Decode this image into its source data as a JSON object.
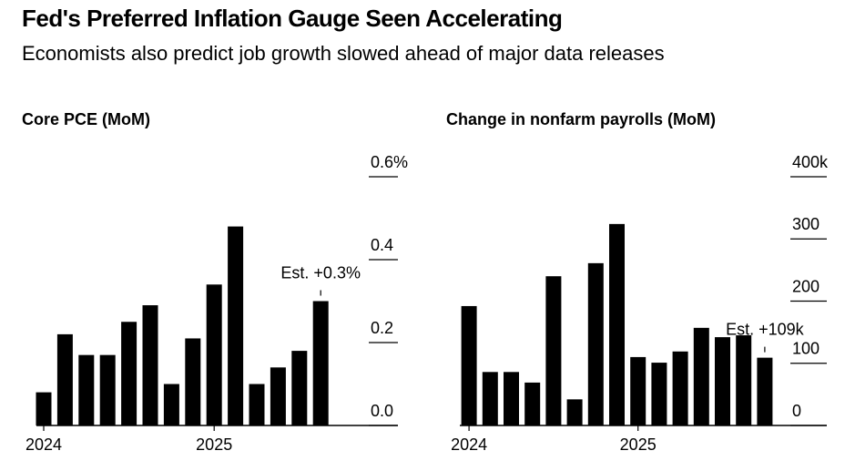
{
  "title": "Fed's Preferred Inflation Gauge Seen Accelerating",
  "subtitle": "Economists also predict job growth slowed ahead of major data releases",
  "chart_data": [
    {
      "type": "bar",
      "title": "Core PCE (MoM)",
      "categories": [
        "2024",
        null,
        null,
        null,
        null,
        null,
        null,
        null,
        "2025",
        null,
        null,
        null,
        null,
        null
      ],
      "values": [
        0.08,
        0.22,
        0.17,
        0.17,
        0.25,
        0.29,
        0.1,
        0.21,
        0.34,
        0.48,
        0.1,
        0.14,
        0.18,
        0.3
      ],
      "color": "#000000",
      "ylim": [
        0,
        0.6
      ],
      "yticks": [
        {
          "value": 0,
          "label": "0.0"
        },
        0.2,
        0.4,
        {
          "value": 0.6,
          "label": "0.6%"
        }
      ],
      "annotation": "Est. +0.3%"
    },
    {
      "type": "bar",
      "title": "Change in nonfarm payrolls (MoM)",
      "categories": [
        "2024",
        null,
        null,
        null,
        null,
        null,
        null,
        null,
        "2025",
        null,
        null,
        null,
        null,
        null,
        null
      ],
      "values": [
        192,
        86,
        86,
        69,
        240,
        42,
        261,
        324,
        110,
        101,
        119,
        157,
        142,
        145,
        109
      ],
      "color": "#000000",
      "ylim": [
        0,
        400
      ],
      "yticks": [
        0,
        100,
        200,
        300,
        {
          "value": 400,
          "label": "400k"
        }
      ],
      "annotation": "Est. +109k"
    }
  ]
}
